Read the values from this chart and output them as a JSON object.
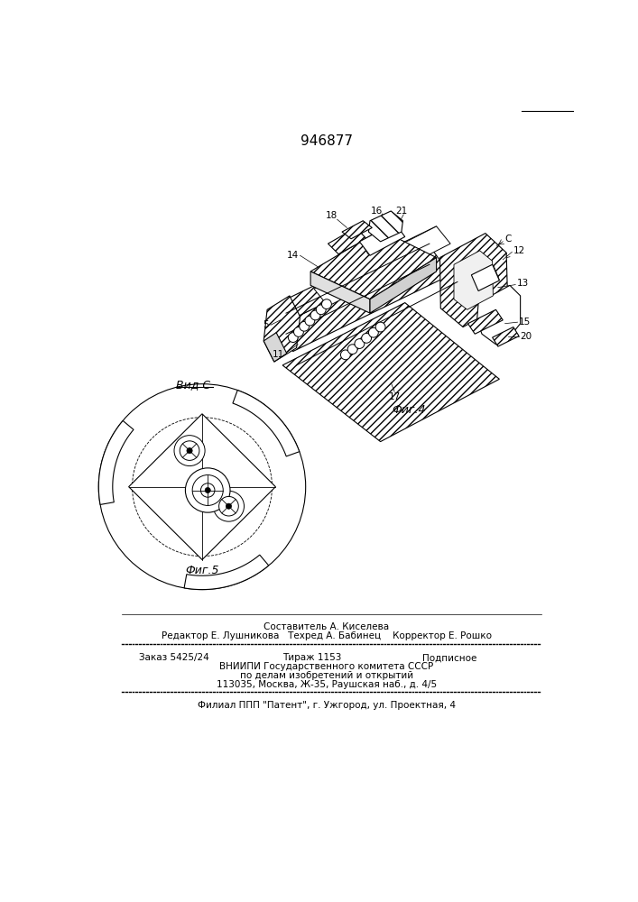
{
  "patent_number": "946877",
  "fig4_label": "Фиг.4",
  "fig5_label": "Фиг.5",
  "view_label": "Вид С",
  "bg_color": "#ffffff",
  "line_color": "#000000",
  "footer_line1": "Составитель А. Киселева",
  "footer_line2": "Редактор Е. Лушникова   Техред А. Бабинец    Корректор Е. Рошко",
  "footer_line3a": "Заказ 5425/24",
  "footer_line3b": "Тираж 1153",
  "footer_line3c": "Подписное",
  "footer_line4": "ВНИИПИ Государственного комитета СССР",
  "footer_line5": "по делам изобретений и открытий",
  "footer_line6": "113035, Москва, Ж-35, Раушская наб., д. 4/5",
  "footer_line7": "Филиал ППП \"Патент\", г. Ужгород, ул. Проектная, 4"
}
